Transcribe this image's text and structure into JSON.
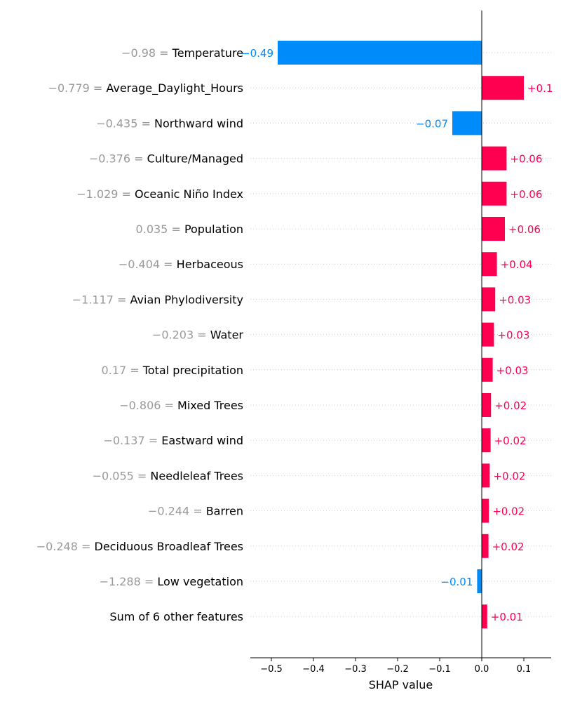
{
  "chart_data": {
    "type": "bar",
    "xlabel": "SHAP value",
    "xlim": [
      -0.55,
      0.165
    ],
    "xticks": [
      -0.5,
      -0.4,
      -0.3,
      -0.2,
      -0.1,
      0.0,
      0.1
    ],
    "xtick_labels": [
      "−0.5",
      "−0.4",
      "−0.3",
      "−0.2",
      "−0.1",
      "0.0",
      "0.1"
    ],
    "colors": {
      "positive": "#ff0051",
      "negative": "#008bfb",
      "feature_value": "#999999",
      "grid": "#cccccc"
    },
    "bars": [
      {
        "feature_value": "−0.98",
        "feature": "Temperature",
        "value": -0.485,
        "label": "−0.49"
      },
      {
        "feature_value": "−0.779",
        "feature": "Average_Daylight_Hours",
        "value": 0.1,
        "label": "+0.1"
      },
      {
        "feature_value": "−0.435",
        "feature": "Northward wind",
        "value": -0.07,
        "label": "−0.07"
      },
      {
        "feature_value": "−0.376",
        "feature": "Culture/Managed",
        "value": 0.059,
        "label": "+0.06"
      },
      {
        "feature_value": "−1.029",
        "feature": "Oceanic Niño Index",
        "value": 0.059,
        "label": "+0.06"
      },
      {
        "feature_value": "0.035",
        "feature": "Population",
        "value": 0.055,
        "label": "+0.06"
      },
      {
        "feature_value": "−0.404",
        "feature": "Herbaceous",
        "value": 0.036,
        "label": "+0.04"
      },
      {
        "feature_value": "−1.117",
        "feature": "Avian Phylodiversity",
        "value": 0.032,
        "label": "+0.03"
      },
      {
        "feature_value": "−0.203",
        "feature": "Water",
        "value": 0.029,
        "label": "+0.03"
      },
      {
        "feature_value": "0.17",
        "feature": "Total precipitation",
        "value": 0.026,
        "label": "+0.03"
      },
      {
        "feature_value": "−0.806",
        "feature": "Mixed Trees",
        "value": 0.022,
        "label": "+0.02"
      },
      {
        "feature_value": "−0.137",
        "feature": "Eastward wind",
        "value": 0.021,
        "label": "+0.02"
      },
      {
        "feature_value": "−0.055",
        "feature": "Needleleaf Trees",
        "value": 0.019,
        "label": "+0.02"
      },
      {
        "feature_value": "−0.244",
        "feature": "Barren",
        "value": 0.017,
        "label": "+0.02"
      },
      {
        "feature_value": "−0.248",
        "feature": "Deciduous Broadleaf Trees",
        "value": 0.016,
        "label": "+0.02"
      },
      {
        "feature_value": "−1.288",
        "feature": "Low vegetation",
        "value": -0.011,
        "label": "−0.01"
      },
      {
        "feature_value": "",
        "feature": "Sum of 6 other features",
        "value": 0.013,
        "label": "+0.01"
      }
    ]
  }
}
